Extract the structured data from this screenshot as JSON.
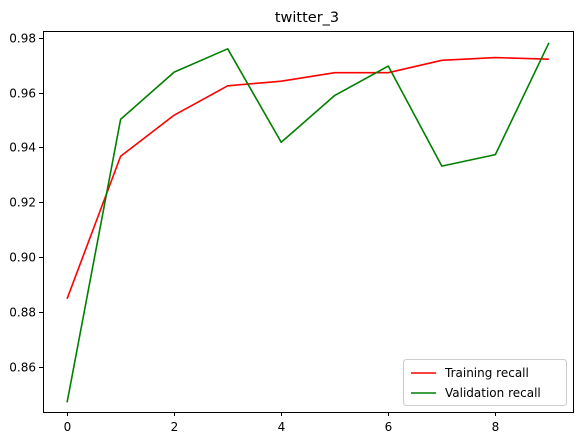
{
  "chart_data": {
    "type": "line",
    "title": "twitter_3",
    "xlabel": "",
    "ylabel": "",
    "x": [
      0,
      1,
      2,
      3,
      4,
      5,
      6,
      7,
      8,
      9
    ],
    "xlim": [
      -0.45,
      9.45
    ],
    "ylim": [
      0.8435,
      0.9825
    ],
    "xticks": [
      0,
      2,
      4,
      6,
      8
    ],
    "yticks": [
      0.86,
      0.88,
      0.9,
      0.92,
      0.94,
      0.96,
      0.98
    ],
    "xtick_labels": [
      "0",
      "2",
      "4",
      "6",
      "8"
    ],
    "ytick_labels": [
      "0.86",
      "0.88",
      "0.90",
      "0.92",
      "0.94",
      "0.96",
      "0.98"
    ],
    "grid": false,
    "legend_position": "bottom-right",
    "series": [
      {
        "name": "Training recall",
        "color": "#ff0000",
        "values": [
          0.8848,
          0.9368,
          0.9518,
          0.9625,
          0.9642,
          0.9673,
          0.9673,
          0.9718,
          0.9728,
          0.9722
        ]
      },
      {
        "name": "Validation recall",
        "color": "#008000",
        "values": [
          0.847,
          0.9503,
          0.9675,
          0.976,
          0.9419,
          0.959,
          0.9697,
          0.9332,
          0.9374,
          0.9782
        ]
      }
    ]
  }
}
